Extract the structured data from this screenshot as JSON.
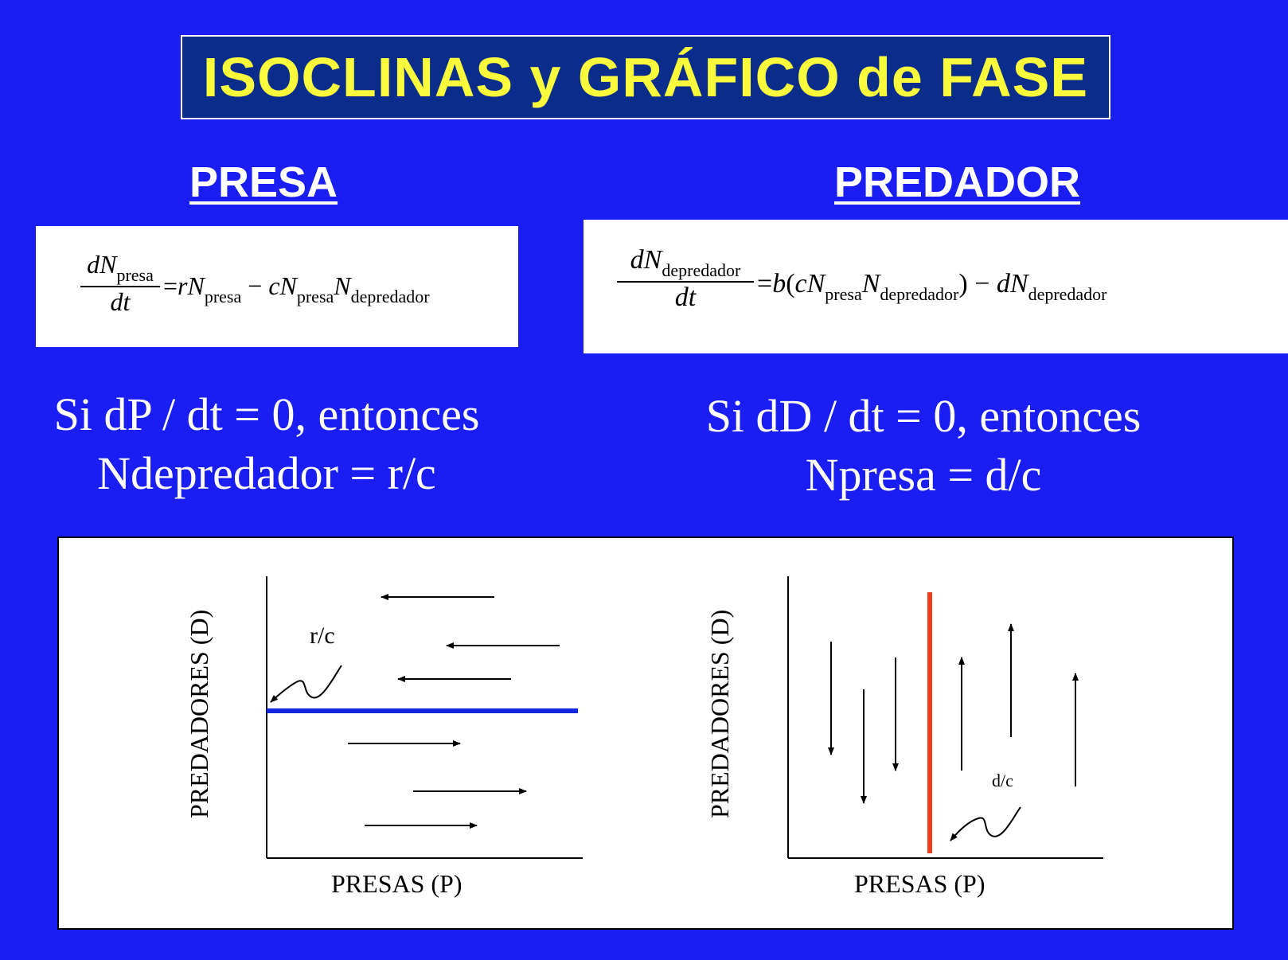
{
  "title": "ISOCLINAS y GRÁFICO de FASE",
  "presa": {
    "heading": "PRESA",
    "equation": {
      "lhs_num": "dN",
      "lhs_num_sub": "presa",
      "lhs_den": "dt",
      "equals": "=",
      "t1": "rN",
      "t1_sub": "presa",
      "minus": "−",
      "t2": "cN",
      "t2_sub": "presa",
      "t3": "N",
      "t3_sub": "depredador"
    },
    "condition_line1": "Si dP / dt = 0, entonces",
    "condition_line2": "Ndepredador = r/c"
  },
  "predador": {
    "heading": "PREDADOR",
    "equation": {
      "lhs_num": "dN",
      "lhs_num_sub": "depredador",
      "lhs_den": "dt",
      "equals": "=",
      "b": "b",
      "open": "(",
      "t1": "cN",
      "t1_sub": "presa",
      "t2": "N",
      "t2_sub": "depredador",
      "close": ")",
      "minus": "−",
      "t3": "dN",
      "t3_sub": "depredador"
    },
    "condition_line1": "Si dD / dt = 0, entonces",
    "condition_line2": "Npresa = d/c"
  },
  "graphs": {
    "left": {
      "ylabel": "PREDADORES (D)",
      "xlabel": "PRESAS (P)",
      "isocline_label": "r/c",
      "isocline_color": "#1228e0"
    },
    "right": {
      "ylabel": "PREDADORES (D)",
      "xlabel": "PRESAS (P)",
      "isocline_label": "d/c",
      "isocline_color": "#f23a1f"
    }
  }
}
